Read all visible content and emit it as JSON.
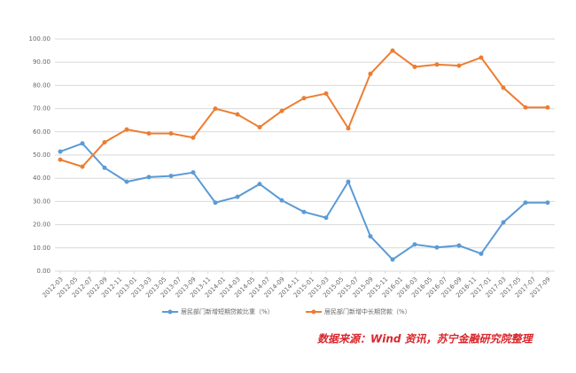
{
  "chart_data": {
    "type": "line",
    "xlim": [
      0,
      66
    ],
    "xticks": [
      {
        "value": 0,
        "label": "2012-03"
      },
      {
        "value": 2,
        "label": "2012-05"
      },
      {
        "value": 4,
        "label": "2012-07"
      },
      {
        "value": 6,
        "label": "2012-09"
      },
      {
        "value": 8,
        "label": "2012-11"
      },
      {
        "value": 10,
        "label": "2013-01"
      },
      {
        "value": 12,
        "label": "2013-03"
      },
      {
        "value": 14,
        "label": "2013-05"
      },
      {
        "value": 16,
        "label": "2013-07"
      },
      {
        "value": 18,
        "label": "2013-09"
      },
      {
        "value": 20,
        "label": "2013-11"
      },
      {
        "value": 22,
        "label": "2014-01"
      },
      {
        "value": 24,
        "label": "2014-03"
      },
      {
        "value": 26,
        "label": "2014-05"
      },
      {
        "value": 28,
        "label": "2014-07"
      },
      {
        "value": 30,
        "label": "2014-09"
      },
      {
        "value": 32,
        "label": "2014-11"
      },
      {
        "value": 34,
        "label": "2015-01"
      },
      {
        "value": 36,
        "label": "2015-03"
      },
      {
        "value": 38,
        "label": "2015-05"
      },
      {
        "value": 40,
        "label": "2015-07"
      },
      {
        "value": 42,
        "label": "2015-09"
      },
      {
        "value": 44,
        "label": "2015-11"
      },
      {
        "value": 46,
        "label": "2016-01"
      },
      {
        "value": 48,
        "label": "2016-03"
      },
      {
        "value": 50,
        "label": "2016-05"
      },
      {
        "value": 52,
        "label": "2016-07"
      },
      {
        "value": 54,
        "label": "2016-09"
      },
      {
        "value": 56,
        "label": "2016-11"
      },
      {
        "value": 58,
        "label": "2017-01"
      },
      {
        "value": 60,
        "label": "2017-03"
      },
      {
        "value": 62,
        "label": "2017-05"
      },
      {
        "value": 64,
        "label": "2017-07"
      },
      {
        "value": 66,
        "label": "2017-09"
      }
    ],
    "x": [
      0,
      3,
      6,
      9,
      12,
      15,
      18,
      21,
      24,
      27,
      30,
      33,
      36,
      39,
      42,
      45,
      48,
      51,
      54,
      57,
      60,
      63,
      66
    ],
    "ylim": [
      0,
      100
    ],
    "yticks": [
      {
        "value": 0,
        "label": "0.00"
      },
      {
        "value": 10,
        "label": "10.00"
      },
      {
        "value": 20,
        "label": "20.00"
      },
      {
        "value": 30,
        "label": "30.00"
      },
      {
        "value": 40,
        "label": "40.00"
      },
      {
        "value": 50,
        "label": "50.00"
      },
      {
        "value": 60,
        "label": "60.00"
      },
      {
        "value": 70,
        "label": "70.00"
      },
      {
        "value": 80,
        "label": "80.00"
      },
      {
        "value": 90,
        "label": "90.00"
      },
      {
        "value": 100,
        "label": "100.00"
      }
    ],
    "grid": true,
    "legend": "bottom",
    "series": [
      {
        "name": "居民部门新增短期贷款比重（%）",
        "color": "#5b9bd5",
        "values": [
          51.5,
          55,
          44.5,
          38.5,
          40.5,
          41,
          42.5,
          29.5,
          32,
          37.5,
          30.5,
          25.5,
          23,
          38.5,
          15,
          5,
          11.5,
          10.2,
          11,
          7.5,
          21,
          29.5,
          29.5
        ]
      },
      {
        "name": "居民部门新增中长期贷款（%）",
        "color": "#ed7d31",
        "values": [
          48,
          45,
          55.5,
          61,
          59.3,
          59.3,
          57.5,
          70,
          67.5,
          62,
          69,
          74.5,
          76.5,
          61.5,
          85,
          95,
          88,
          89,
          88.5,
          92,
          79,
          70.5,
          70.5
        ]
      }
    ],
    "annotation": "数据来源：Wind 资讯，苏宁金融研究院整理"
  }
}
